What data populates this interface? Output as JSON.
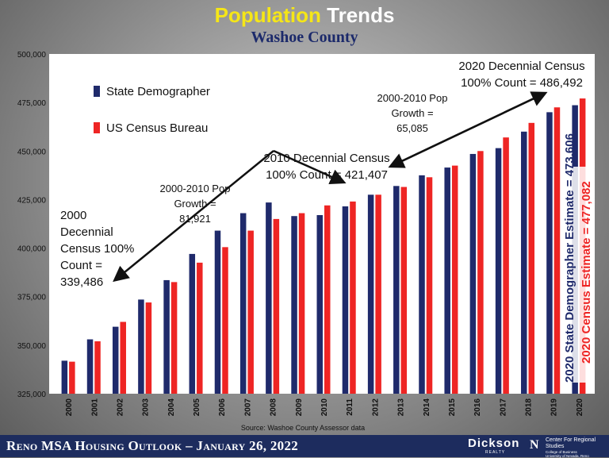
{
  "header": {
    "title_part1": "Population",
    "title_part2": "Trends",
    "subtitle": "Washoe County"
  },
  "chart_data": {
    "type": "bar",
    "categories": [
      "2000",
      "2001",
      "2002",
      "2003",
      "2004",
      "2005",
      "2006",
      "2007",
      "2008",
      "2009",
      "2010",
      "2011",
      "2012",
      "2013",
      "2014",
      "2015",
      "2016",
      "2017",
      "2018",
      "2019",
      "2020"
    ],
    "series": [
      {
        "name": "State Demographer",
        "color": "#1f2a6b",
        "values": [
          342000,
          353000,
          359500,
          373500,
          383500,
          397000,
          409000,
          418000,
          423500,
          416500,
          417000,
          421500,
          427500,
          432000,
          437500,
          441500,
          448500,
          451500,
          460000,
          470000,
          473606
        ]
      },
      {
        "name": "US Census Bureau",
        "color": "#ee2524",
        "values": [
          341500,
          352000,
          362000,
          372000,
          382500,
          392500,
          400500,
          409000,
          415000,
          418000,
          422000,
          424000,
          427500,
          431500,
          436500,
          442500,
          450000,
          457000,
          464500,
          472500,
          477082
        ]
      }
    ],
    "ylim": [
      325000,
      500000
    ],
    "yticks": [
      325000,
      350000,
      375000,
      400000,
      425000,
      450000,
      475000,
      500000
    ],
    "ytick_labels": [
      "325,000",
      "350,000",
      "375,000",
      "400,000",
      "425,000",
      "450,000",
      "475,000",
      "500,000"
    ],
    "legend_position": "top-left",
    "grid": false,
    "source": "Source: Washoe County Assessor data",
    "annotations": {
      "census2000": [
        "2000",
        "Decennial",
        "Census 100%",
        "Count =",
        "339,486"
      ],
      "growth1": [
        "2000-2010 Pop",
        "Growth =",
        "81,921"
      ],
      "census2010": [
        "2010 Decennial Census",
        "100% Count = 421,407"
      ],
      "growth2": [
        "2000-2010 Pop",
        "Growth =",
        "65,085"
      ],
      "census2020": [
        "2020 Decennial Census",
        "100% Count = 486,492"
      ],
      "state_estimate": "2020 State Demographer Estimate = 473,606",
      "census_estimate": "2020 Census Estimate = 477,082"
    }
  },
  "footer": {
    "text": "Reno MSA Housing Outlook – January 26, 2022",
    "logo_name": "Dickson",
    "logo_sub": "REALTY",
    "logo_mark": "N",
    "center_name": "Center For Regional Studies",
    "center_sub1": "College of Business",
    "center_sub2": "University of Nevada, Reno"
  }
}
